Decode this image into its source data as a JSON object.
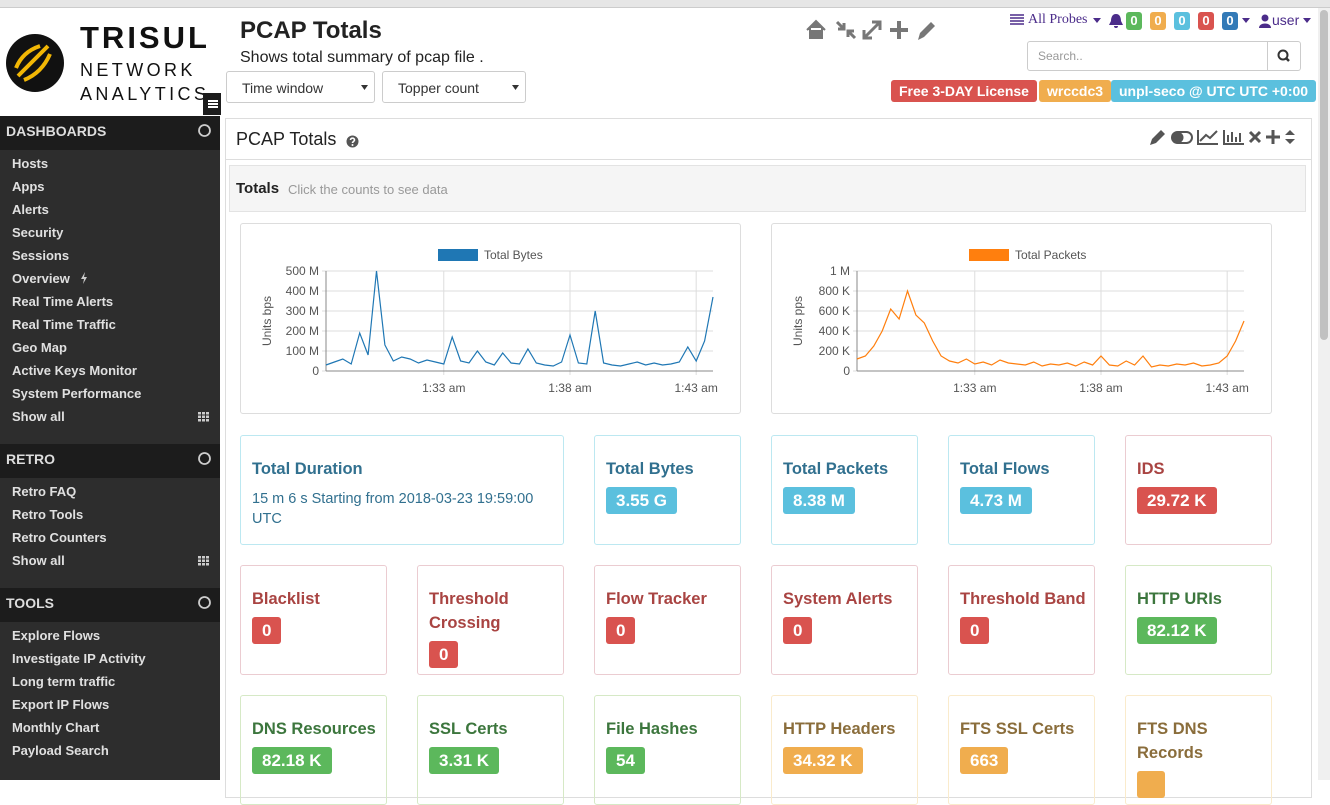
{
  "brand": {
    "name": "TRISUL",
    "line1": "NETWORK",
    "line2": "ANALYTICS"
  },
  "header": {
    "title": "PCAP Totals",
    "subtitle": "Shows total summary of pcap file .",
    "filters": [
      "Time window",
      "Topper count"
    ],
    "probes": "All Probes",
    "alert_counts": [
      {
        "value": 0,
        "kind": "success"
      },
      {
        "value": 0,
        "kind": "warning"
      },
      {
        "value": 0,
        "kind": "info"
      },
      {
        "value": 0,
        "kind": "danger"
      },
      {
        "value": 0,
        "kind": "primary"
      }
    ],
    "user": "user",
    "search_placeholder": "Search..",
    "tags": [
      {
        "text": "Free 3-DAY License",
        "kind": "danger"
      },
      {
        "text": "wrccdc3",
        "kind": "warning"
      },
      {
        "text": "unpl-seco @ UTC UTC +0:00",
        "kind": "info"
      }
    ]
  },
  "sidebar": [
    {
      "title": "DASHBOARDS",
      "items": [
        "Hosts",
        "Apps",
        "Alerts",
        "Security",
        "Sessions",
        "Overview",
        "Real Time Alerts",
        "Real Time Traffic",
        "Geo Map",
        "Active Keys Monitor",
        "System Performance",
        "Show all"
      ]
    },
    {
      "title": "RETRO",
      "items": [
        "Retro FAQ",
        "Retro Tools",
        "Retro Counters",
        "Show all"
      ]
    },
    {
      "title": "TOOLS",
      "items": [
        "Explore Flows",
        "Investigate IP Activity",
        "Long term traffic",
        "Export IP Flows",
        "Monthly Chart",
        "Payload Search"
      ]
    }
  ],
  "panel": {
    "title": "PCAP Totals",
    "section": "Totals",
    "hint": "Click the counts to see data"
  },
  "chart_data": [
    {
      "type": "line",
      "legend_position": "top",
      "y_label": "Units bps",
      "x": [
        "01:28:20",
        "01:28:40",
        "01:29:00",
        "01:29:20",
        "01:29:40",
        "01:30:00",
        "01:30:20",
        "01:30:40",
        "01:31:00",
        "01:31:20",
        "01:31:40",
        "01:32:00",
        "01:32:20",
        "01:32:40",
        "01:33:00",
        "01:33:20",
        "01:33:40",
        "01:34:00",
        "01:34:20",
        "01:34:40",
        "01:35:00",
        "01:35:20",
        "01:35:40",
        "01:36:00",
        "01:36:20",
        "01:36:40",
        "01:37:00",
        "01:37:20",
        "01:37:40",
        "01:38:00",
        "01:38:20",
        "01:38:40",
        "01:39:00",
        "01:39:20",
        "01:39:40",
        "01:40:00",
        "01:40:20",
        "01:40:40",
        "01:41:00",
        "01:41:20",
        "01:41:40",
        "01:42:00",
        "01:42:20",
        "01:42:40",
        "01:43:00",
        "01:43:20",
        "01:43:40"
      ],
      "series": [
        {
          "name": "Total Bytes",
          "color": "#1f77b4",
          "values": [
            30000000,
            45000000,
            60000000,
            35000000,
            190000000,
            80000000,
            500000000,
            130000000,
            50000000,
            70000000,
            60000000,
            40000000,
            55000000,
            45000000,
            35000000,
            170000000,
            50000000,
            40000000,
            100000000,
            45000000,
            30000000,
            90000000,
            40000000,
            35000000,
            110000000,
            40000000,
            30000000,
            25000000,
            45000000,
            180000000,
            40000000,
            35000000,
            300000000,
            40000000,
            30000000,
            25000000,
            35000000,
            45000000,
            30000000,
            40000000,
            30000000,
            35000000,
            45000000,
            120000000,
            50000000,
            150000000,
            370000000
          ]
        }
      ],
      "xlim": [
        "01:28:20",
        "01:43:40"
      ],
      "xticks": [
        {
          "value": "01:33:00",
          "label": "1:33 am"
        },
        {
          "value": "01:38:00",
          "label": "1:38 am"
        },
        {
          "value": "01:43:00",
          "label": "1:43 am"
        }
      ],
      "ylim": [
        0,
        500000000
      ],
      "yticks": [
        0,
        {
          "value": 100000000,
          "label": "100 M"
        },
        {
          "value": 200000000,
          "label": "200 M"
        },
        {
          "value": 300000000,
          "label": "300 M"
        },
        {
          "value": 400000000,
          "label": "400 M"
        },
        {
          "value": 500000000,
          "label": "500 M"
        }
      ],
      "grid": true
    },
    {
      "type": "line",
      "legend_position": "top",
      "y_label": "Units pps",
      "x": [
        "01:28:20",
        "01:28:40",
        "01:29:00",
        "01:29:20",
        "01:29:40",
        "01:30:00",
        "01:30:20",
        "01:30:40",
        "01:31:00",
        "01:31:20",
        "01:31:40",
        "01:32:00",
        "01:32:20",
        "01:32:40",
        "01:33:00",
        "01:33:20",
        "01:33:40",
        "01:34:00",
        "01:34:20",
        "01:34:40",
        "01:35:00",
        "01:35:20",
        "01:35:40",
        "01:36:00",
        "01:36:20",
        "01:36:40",
        "01:37:00",
        "01:37:20",
        "01:37:40",
        "01:38:00",
        "01:38:20",
        "01:38:40",
        "01:39:00",
        "01:39:20",
        "01:39:40",
        "01:40:00",
        "01:40:20",
        "01:40:40",
        "01:41:00",
        "01:41:20",
        "01:41:40",
        "01:42:00",
        "01:42:20",
        "01:42:40",
        "01:43:00",
        "01:43:20",
        "01:43:40"
      ],
      "series": [
        {
          "name": "Total Packets",
          "color": "#ff7f0e",
          "values": [
            120000,
            150000,
            250000,
            400000,
            620000,
            520000,
            800000,
            560000,
            480000,
            300000,
            150000,
            100000,
            80000,
            120000,
            70000,
            90000,
            60000,
            110000,
            80000,
            70000,
            60000,
            90000,
            50000,
            70000,
            60000,
            80000,
            50000,
            90000,
            60000,
            150000,
            60000,
            50000,
            100000,
            60000,
            150000,
            40000,
            60000,
            50000,
            70000,
            60000,
            80000,
            50000,
            60000,
            80000,
            150000,
            300000,
            500000
          ]
        }
      ],
      "xlim": [
        "01:28:20",
        "01:43:40"
      ],
      "xticks": [
        {
          "value": "01:33:00",
          "label": "1:33 am"
        },
        {
          "value": "01:38:00",
          "label": "1:38 am"
        },
        {
          "value": "01:43:00",
          "label": "1:43 am"
        }
      ],
      "ylim": [
        0,
        1000000
      ],
      "yticks": [
        0,
        {
          "value": 200000,
          "label": "200 K"
        },
        {
          "value": 400000,
          "label": "400 K"
        },
        {
          "value": 600000,
          "label": "600 K"
        },
        {
          "value": 800000,
          "label": "800 K"
        },
        {
          "value": 1000000,
          "label": "1 M"
        }
      ],
      "grid": true
    }
  ],
  "tiles": [
    {
      "title": "Total Duration",
      "text": "15 m 6 s Starting from 2018-03-23 19:59:00 UTC",
      "kind": "info"
    },
    {
      "title": "Total Bytes",
      "value": "3.55 G",
      "kind": "info"
    },
    {
      "title": "Total Packets",
      "value": "8.38 M",
      "kind": "info"
    },
    {
      "title": "Total Flows",
      "value": "4.73 M",
      "kind": "info"
    },
    {
      "title": "IDS",
      "value": "29.72 K",
      "kind": "danger"
    },
    {
      "title": "Blacklist",
      "value": 0,
      "kind": "danger"
    },
    {
      "title": "Threshold Crossing",
      "value": 0,
      "kind": "danger"
    },
    {
      "title": "Flow Tracker",
      "value": 0,
      "kind": "danger"
    },
    {
      "title": "System Alerts",
      "value": 0,
      "kind": "danger"
    },
    {
      "title": "Threshold Band",
      "value": 0,
      "kind": "danger"
    },
    {
      "title": "HTTP URIs",
      "value": "82.12 K",
      "kind": "success"
    },
    {
      "title": "DNS Resources",
      "value": "82.18 K",
      "kind": "success"
    },
    {
      "title": "SSL Certs",
      "value": "3.31 K",
      "kind": "success"
    },
    {
      "title": "File Hashes",
      "value": 54,
      "kind": "success"
    },
    {
      "title": "HTTP Headers",
      "value": "34.32 K",
      "kind": "warning"
    },
    {
      "title": "FTS SSL Certs",
      "value": 663,
      "kind": "warning"
    },
    {
      "title": "FTS DNS Records",
      "kind": "warning"
    }
  ]
}
